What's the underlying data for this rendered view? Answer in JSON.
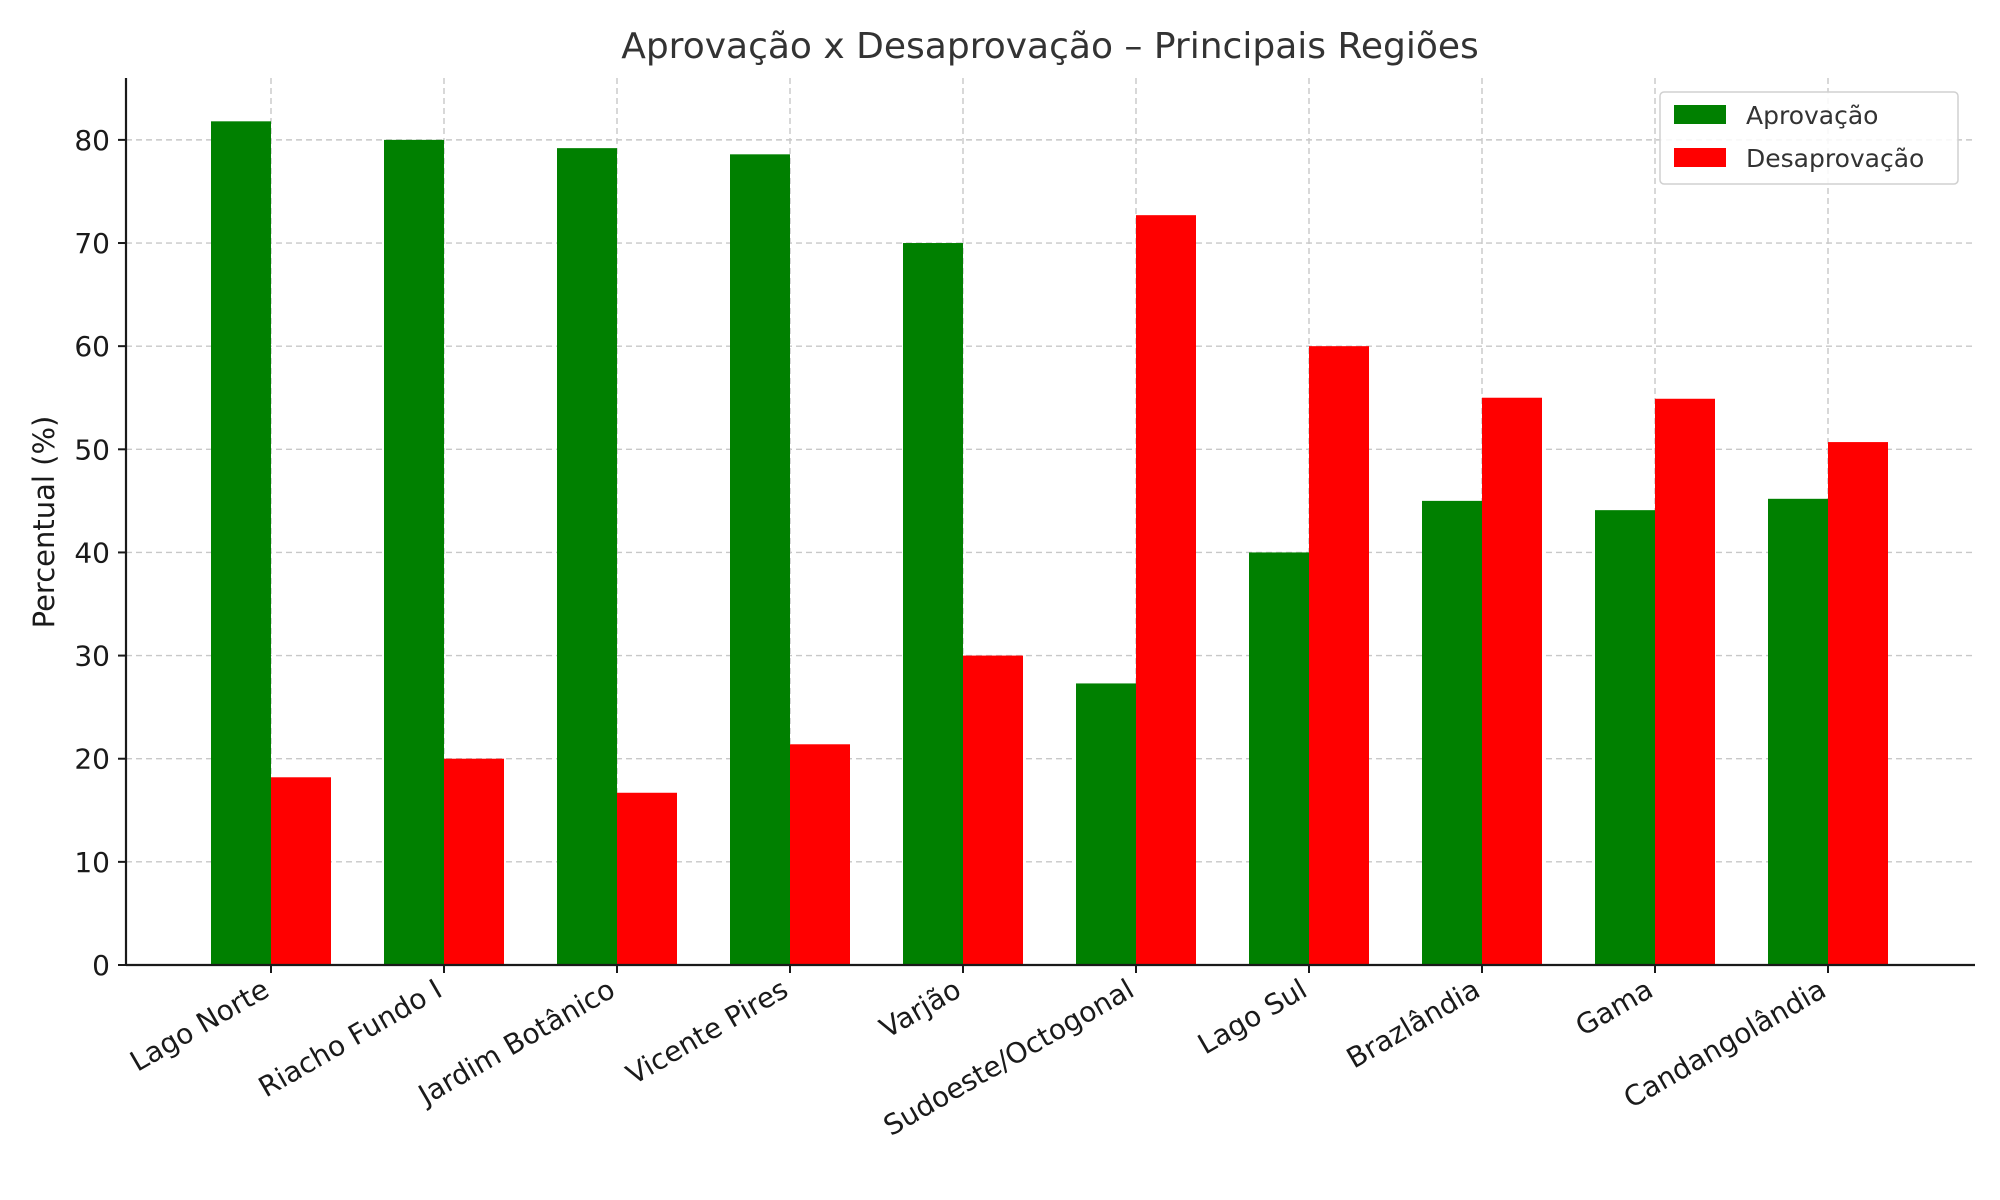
{
  "chart_data": {
    "type": "bar",
    "title": "Aprovação x Desaprovação – Principais Regiões",
    "xlabel": "",
    "ylabel": "Percentual (%)",
    "categories": [
      "Lago Norte",
      "Riacho Fundo I",
      "Jardim Botânico",
      "Vicente Pires",
      "Varjão",
      "Sudoeste/Octogonal",
      "Lago Sul",
      "Brazlândia",
      "Gama",
      "Candangolândia"
    ],
    "series": [
      {
        "name": "Aprovação",
        "color": "#008000",
        "values": [
          81.8,
          80.0,
          79.2,
          78.6,
          70.0,
          27.3,
          40.0,
          45.0,
          44.1,
          45.2
        ]
      },
      {
        "name": "Desaprovação",
        "color": "#ff0000",
        "values": [
          18.2,
          20.0,
          16.7,
          21.4,
          30.0,
          72.7,
          60.0,
          55.0,
          54.9,
          50.7
        ]
      }
    ],
    "ylim": [
      0,
      86
    ],
    "yticks": [
      0,
      10,
      20,
      30,
      40,
      50,
      60,
      70,
      80
    ],
    "grid": true,
    "legend_position": "top-right"
  }
}
